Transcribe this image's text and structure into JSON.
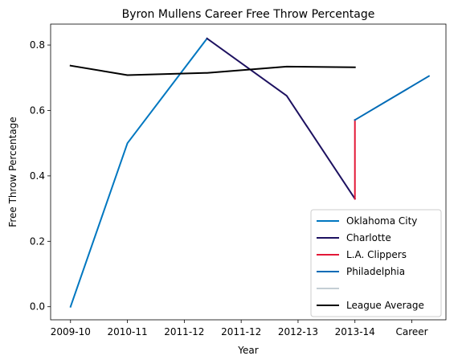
{
  "chart_data": {
    "type": "line",
    "title": "Byron Mullens Career Free Throw Percentage",
    "xlabel": "Year",
    "ylabel": "Free Throw Percentage",
    "x_ticks": [
      {
        "x": 0,
        "label": "2009-10"
      },
      {
        "x": 1,
        "label": "2010-11"
      },
      {
        "x": 2,
        "label": "2011-12"
      },
      {
        "x": 3,
        "label": "2011-12"
      },
      {
        "x": 4,
        "label": "2012-13"
      },
      {
        "x": 5,
        "label": "2013-14"
      },
      {
        "x": 6,
        "label": "Career"
      }
    ],
    "y_ticks": [
      0.0,
      0.2,
      0.4,
      0.6,
      0.8
    ],
    "xlim": [
      -0.35,
      6.6
    ],
    "ylim": [
      -0.04,
      0.864
    ],
    "grid": false,
    "legend_position": "lower right",
    "series": [
      {
        "name": "Oklahoma City",
        "color": "#0077c0",
        "points": [
          [
            0,
            0.0
          ],
          [
            1,
            0.5
          ],
          [
            2.4,
            0.82
          ]
        ]
      },
      {
        "name": "Charlotte",
        "color": "#1d1160",
        "points": [
          [
            2.4,
            0.82
          ],
          [
            3.8,
            0.645
          ],
          [
            5,
            0.33
          ]
        ]
      },
      {
        "name": "L.A. Clippers",
        "color": "#e31837",
        "points": [
          [
            5,
            0.33
          ],
          [
            5,
            0.571
          ]
        ]
      },
      {
        "name": "Philadelphia",
        "color": "#006bb6",
        "points": [
          [
            5,
            0.571
          ],
          [
            6.3,
            0.705
          ]
        ]
      },
      {
        "name": "",
        "color": "#c4ced4",
        "points": []
      },
      {
        "name": "League Average",
        "color": "#000000",
        "points": [
          [
            0,
            0.737
          ],
          [
            1,
            0.708
          ],
          [
            2.4,
            0.715
          ],
          [
            3.8,
            0.734
          ],
          [
            5,
            0.732
          ]
        ]
      }
    ]
  }
}
